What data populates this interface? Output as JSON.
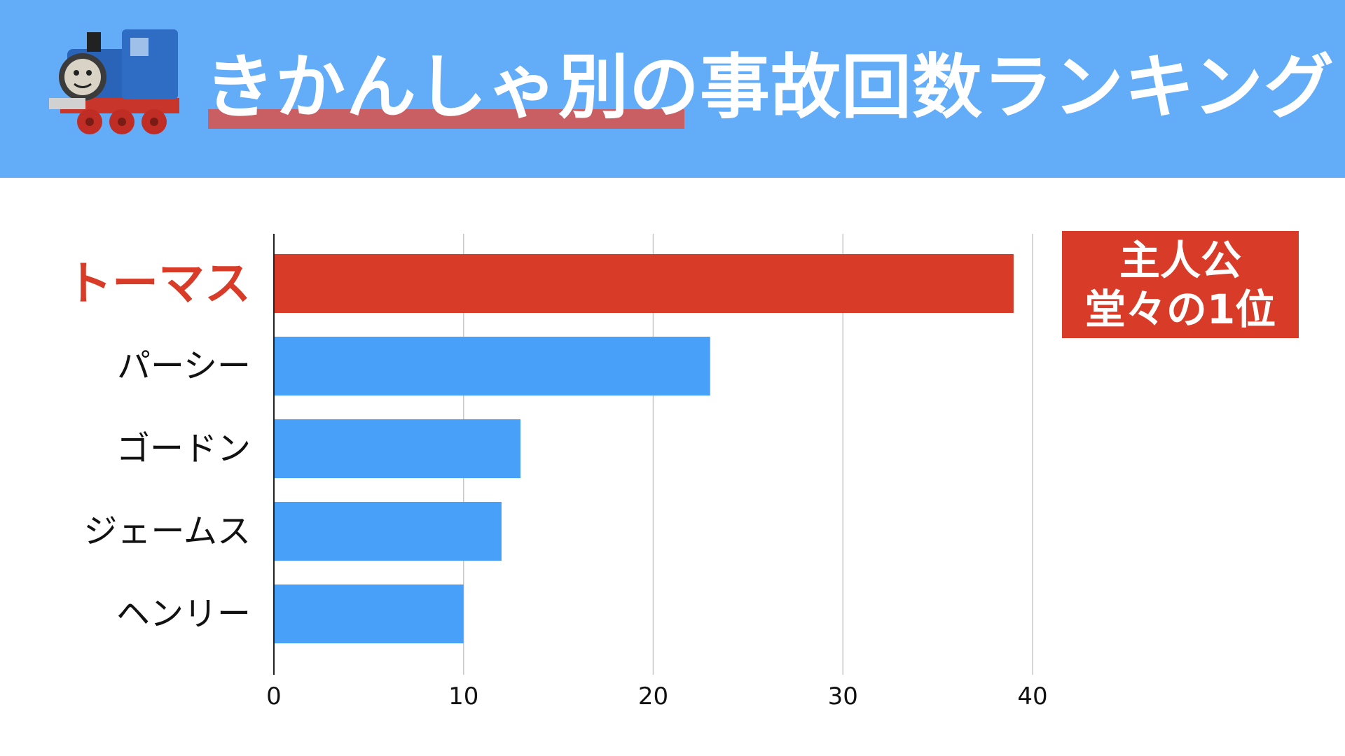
{
  "header": {
    "title": "きかんしゃ別の事故回数ランキング"
  },
  "callout": {
    "line1": "主人公",
    "line2": "堂々の1位"
  },
  "colors": {
    "header_bg": "#62acf8",
    "highlight": "#d83b28",
    "bar": "#48a0f8",
    "title_underline": "#c95f63"
  },
  "chart_data": {
    "type": "bar",
    "orientation": "horizontal",
    "categories": [
      "トーマス",
      "パーシー",
      "ゴードン",
      "ジェームス",
      "ヘンリー"
    ],
    "values": [
      39,
      23,
      13,
      12,
      10
    ],
    "highlight_index": 0,
    "xlim": [
      0,
      40
    ],
    "xticks": [
      0,
      10,
      20,
      30,
      40
    ],
    "grid": true,
    "legend": "none"
  }
}
